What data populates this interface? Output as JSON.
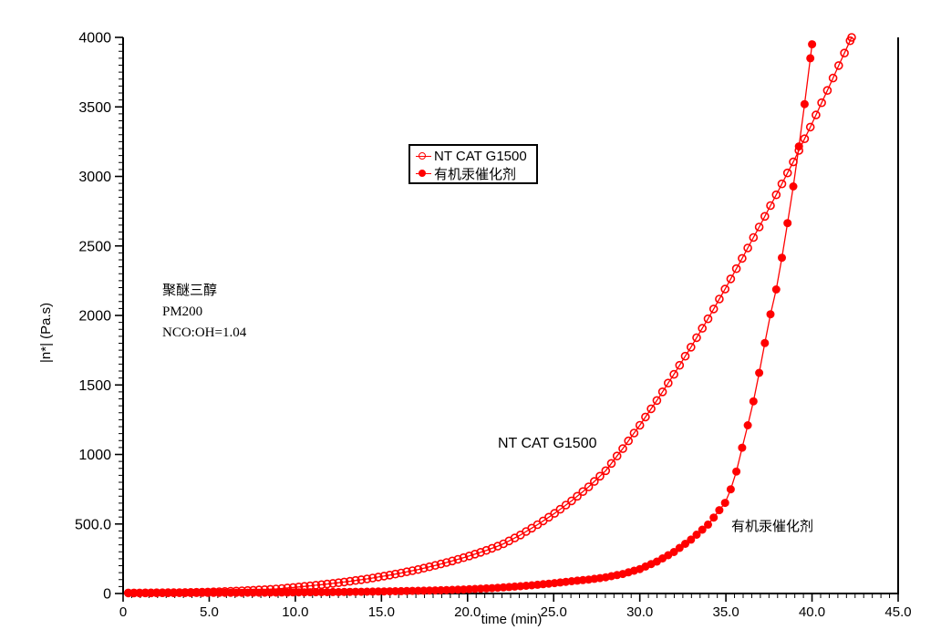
{
  "page": {
    "background": "#ffffff"
  },
  "chart_data": {
    "type": "line",
    "title": "",
    "xlabel": "time (min)",
    "ylabel": "|n*| (Pa.s)",
    "xlim": [
      0,
      45
    ],
    "ylim": [
      0,
      4000
    ],
    "x_major_tick_step": 5,
    "x_minor_tick_step": 0.5,
    "x_tick_labels": [
      "0",
      "5.0",
      "10.0",
      "15.0",
      "20.0",
      "25.0",
      "30.0",
      "35.0",
      "40.0",
      "45.0"
    ],
    "y_major_tick_step": 500,
    "y_minor_tick_step": 50,
    "y_tick_labels": [
      "0",
      "500.0",
      "1000",
      "1500",
      "2000",
      "2500",
      "3000",
      "3500",
      "4000"
    ],
    "grid": false,
    "axis_color": "#000000",
    "series_color": "#ff0000",
    "legend": {
      "border_color": "#000000",
      "entries": [
        {
          "label": "NT CAT G1500",
          "marker": "open-circle",
          "color": "#ff0000"
        },
        {
          "label": "有机汞催化剂",
          "marker": "filled-circle",
          "color": "#ff0000"
        }
      ]
    },
    "curve_labels": [
      {
        "text": "NT CAT G1500",
        "x": 21.8,
        "y": 1075
      },
      {
        "text": "有机汞催化剂",
        "x": 35.3,
        "y": 500
      }
    ],
    "annotation_lines": [
      "聚醚三醇",
      "PM200",
      "NCO:OH=1.04"
    ],
    "series": [
      {
        "name": "NT CAT G1500",
        "marker": "open-circle",
        "color": "#ff0000",
        "marker_interval_min": 0.33,
        "points": [
          [
            0.3,
            4
          ],
          [
            1,
            4
          ],
          [
            2,
            5
          ],
          [
            3,
            6
          ],
          [
            4,
            8
          ],
          [
            5,
            11
          ],
          [
            6,
            15
          ],
          [
            7,
            20
          ],
          [
            8,
            26
          ],
          [
            9,
            34
          ],
          [
            10,
            45
          ],
          [
            11,
            57
          ],
          [
            12,
            70
          ],
          [
            13,
            85
          ],
          [
            14,
            102
          ],
          [
            15,
            122
          ],
          [
            16,
            144
          ],
          [
            17,
            169
          ],
          [
            18,
            198
          ],
          [
            19,
            230
          ],
          [
            20,
            266
          ],
          [
            21,
            306
          ],
          [
            22,
            352
          ],
          [
            23,
            416
          ],
          [
            24,
            490
          ],
          [
            25,
            572
          ],
          [
            26,
            662
          ],
          [
            27,
            764
          ],
          [
            28,
            880
          ],
          [
            29,
            1040
          ],
          [
            30,
            1210
          ],
          [
            31,
            1390
          ],
          [
            32,
            1580
          ],
          [
            33,
            1778
          ],
          [
            34,
            1984
          ],
          [
            35,
            2200
          ],
          [
            36,
            2424
          ],
          [
            37,
            2652
          ],
          [
            38,
            2886
          ],
          [
            39,
            3126
          ],
          [
            40,
            3380
          ],
          [
            41,
            3648
          ],
          [
            42,
            3920
          ],
          [
            42.3,
            4000
          ]
        ]
      },
      {
        "name": "有机汞催化剂",
        "marker": "filled-circle",
        "color": "#ff0000",
        "marker_interval_min": 0.33,
        "points": [
          [
            0.3,
            3
          ],
          [
            2,
            3
          ],
          [
            4,
            4
          ],
          [
            6,
            5
          ],
          [
            8,
            6
          ],
          [
            10,
            8
          ],
          [
            12,
            10
          ],
          [
            14,
            13
          ],
          [
            16,
            17
          ],
          [
            18,
            22
          ],
          [
            20,
            30
          ],
          [
            21,
            36
          ],
          [
            22,
            43
          ],
          [
            23,
            52
          ],
          [
            24,
            62
          ],
          [
            25,
            74
          ],
          [
            26,
            88
          ],
          [
            27,
            100
          ],
          [
            28,
            116
          ],
          [
            29,
            140
          ],
          [
            30,
            176
          ],
          [
            31,
            230
          ],
          [
            32,
            300
          ],
          [
            33,
            390
          ],
          [
            34,
            500
          ],
          [
            35,
            660
          ],
          [
            35.5,
            820
          ],
          [
            36,
            1080
          ],
          [
            36.5,
            1320
          ],
          [
            37,
            1630
          ],
          [
            37.5,
            1960
          ],
          [
            38,
            2230
          ],
          [
            38.5,
            2600
          ],
          [
            39,
            3000
          ],
          [
            39.5,
            3450
          ],
          [
            40,
            3950
          ]
        ]
      }
    ]
  }
}
